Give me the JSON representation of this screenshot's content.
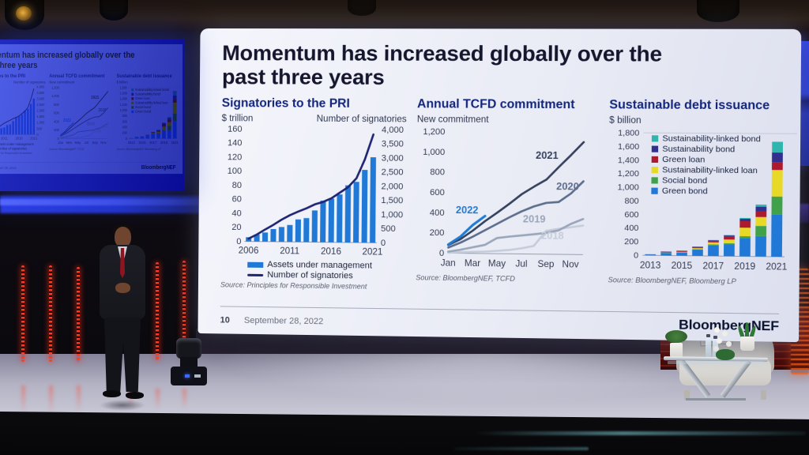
{
  "slide": {
    "title": "Momentum has increased globally over the past three years",
    "footer": {
      "page_number": "10",
      "date": "September 28, 2022",
      "brand": "BloombergNEF"
    }
  },
  "chart_data": [
    {
      "id": "pri",
      "type": "bar",
      "title": "Signatories to the PRI",
      "left_axis_label": "$ trillion",
      "right_axis_label": "Number of signatories",
      "categories": [
        "2006",
        "2007",
        "2008",
        "2009",
        "2010",
        "2011",
        "2012",
        "2013",
        "2014",
        "2015",
        "2016",
        "2017",
        "2018",
        "2019",
        "2020",
        "2021"
      ],
      "x_tick_labels": [
        "2006",
        "2011",
        "2016",
        "2021"
      ],
      "x_tick_positions": [
        0,
        5,
        10,
        15
      ],
      "left_axis": {
        "min": 0,
        "max": 160,
        "tick_step": 20,
        "tick_labels": [
          "0",
          "20",
          "40",
          "60",
          "80",
          "100",
          "120",
          "140",
          "160"
        ]
      },
      "right_axis": {
        "min": 0,
        "max": 4000,
        "tick_step": 500,
        "tick_labels": [
          "0",
          "500",
          "1,000",
          "1,500",
          "2,000",
          "2,500",
          "3,000",
          "3,500",
          "4,000"
        ]
      },
      "series": [
        {
          "name": "Assets under management",
          "type": "bar",
          "axis": "left",
          "color": "#2079d6",
          "values": [
            6,
            10,
            13,
            18,
            21,
            24,
            32,
            34,
            45,
            59,
            62,
            68,
            81,
            86,
            103,
            121
          ]
        },
        {
          "name": "Number of signatories",
          "type": "line",
          "axis": "right",
          "color": "#1e2472",
          "values": [
            100,
            250,
            430,
            600,
            790,
            950,
            1080,
            1200,
            1340,
            1430,
            1560,
            1760,
            1960,
            2280,
            2950,
            3830
          ]
        }
      ],
      "source": "Source: Principles for Responsible Investment"
    },
    {
      "id": "tcfd",
      "type": "line",
      "title": "Annual TCFD commitment",
      "y_axis_label": "New commitment",
      "x_tick_labels": [
        "Jan",
        "Mar",
        "May",
        "Jul",
        "Sep",
        "Nov"
      ],
      "y_axis": {
        "min": 0,
        "max": 1200,
        "tick_step": 200,
        "tick_labels": [
          "0",
          "200",
          "400",
          "600",
          "800",
          "1,000",
          "1,200"
        ]
      },
      "series": [
        {
          "name": "2018",
          "color": "#c6cdda",
          "values": [
            5,
            10,
            15,
            20,
            28,
            38,
            55,
            80,
            230,
            250,
            268,
            285
          ]
        },
        {
          "name": "2019",
          "color": "#9aa6ba",
          "values": [
            15,
            35,
            60,
            85,
            155,
            170,
            182,
            195,
            210,
            235,
            300,
            350
          ]
        },
        {
          "name": "2020",
          "color": "#5d6e8c",
          "values": [
            55,
            105,
            165,
            230,
            295,
            360,
            420,
            470,
            505,
            515,
            600,
            720
          ]
        },
        {
          "name": "2021",
          "color": "#35425e",
          "values": [
            80,
            140,
            225,
            320,
            405,
            495,
            590,
            665,
            735,
            860,
            980,
            1105
          ]
        },
        {
          "name": "2022",
          "color": "#1f7bd4",
          "width": 3,
          "values": [
            85,
            165,
            280,
            370
          ]
        }
      ],
      "series_labels": [
        {
          "text": "2021",
          "month": 8.1,
          "value": 940,
          "color": "#35425e"
        },
        {
          "text": "2020",
          "month": 9.8,
          "value": 635,
          "color": "#5d6e8c"
        },
        {
          "text": "2019",
          "month": 7.1,
          "value": 310,
          "color": "#9aa6ba"
        },
        {
          "text": "2018",
          "month": 8.6,
          "value": 150,
          "color": "#c6cdda"
        },
        {
          "text": "2022",
          "month": 1.6,
          "value": 395,
          "color": "#1f7bd4"
        }
      ],
      "source": "Source: BloombergNEF, TCFD"
    },
    {
      "id": "debt",
      "type": "bar",
      "title": "Sustainable debt issuance",
      "y_axis_label": "$ billion",
      "categories": [
        "2013",
        "2014",
        "2015",
        "2016",
        "2017",
        "2018",
        "2019",
        "2020",
        "2021"
      ],
      "x_tick_labels": [
        "2013",
        "2015",
        "2017",
        "2019",
        "2021"
      ],
      "x_tick_positions": [
        0,
        2,
        4,
        6,
        8
      ],
      "y_axis": {
        "min": 0,
        "max": 1800,
        "tick_step": 200,
        "tick_labels": [
          "0",
          "200",
          "400",
          "600",
          "800",
          "1,000",
          "1,200",
          "1,400",
          "1,600",
          "1,800"
        ]
      },
      "series": [
        {
          "name": "Green bond",
          "color": "#2079d6",
          "values": [
            12,
            37,
            46,
            93,
            158,
            172,
            268,
            298,
            618
          ]
        },
        {
          "name": "Social bond",
          "color": "#3fa24a",
          "values": [
            1,
            3,
            4,
            5,
            12,
            17,
            27,
            150,
            262
          ]
        },
        {
          "name": "Sustainability-linked loan",
          "color": "#e8d926",
          "values": [
            0,
            4,
            6,
            15,
            30,
            55,
            125,
            130,
            388
          ]
        },
        {
          "name": "Green loan",
          "color": "#ab1a2d",
          "values": [
            2,
            10,
            12,
            15,
            22,
            45,
            95,
            85,
            108
          ]
        },
        {
          "name": "Sustainability bond",
          "color": "#32308f",
          "values": [
            1,
            4,
            6,
            7,
            10,
            13,
            35,
            68,
            148
          ]
        },
        {
          "name": "Sustainability-linked bond",
          "color": "#2fb5ad",
          "values": [
            0,
            0,
            0,
            0,
            2,
            8,
            12,
            29,
            156
          ]
        }
      ],
      "legend": [
        {
          "label": "Sustainability-linked bond",
          "color": "#2fb5ad"
        },
        {
          "label": "Sustainability bond",
          "color": "#32308f"
        },
        {
          "label": "Green loan",
          "color": "#ab1a2d"
        },
        {
          "label": "Sustainability-linked loan",
          "color": "#e8d926"
        },
        {
          "label": "Social bond",
          "color": "#3fa24a"
        },
        {
          "label": "Green bond",
          "color": "#2079d6"
        }
      ],
      "source": "Source: BloombergNEF, Bloomberg LP"
    }
  ]
}
